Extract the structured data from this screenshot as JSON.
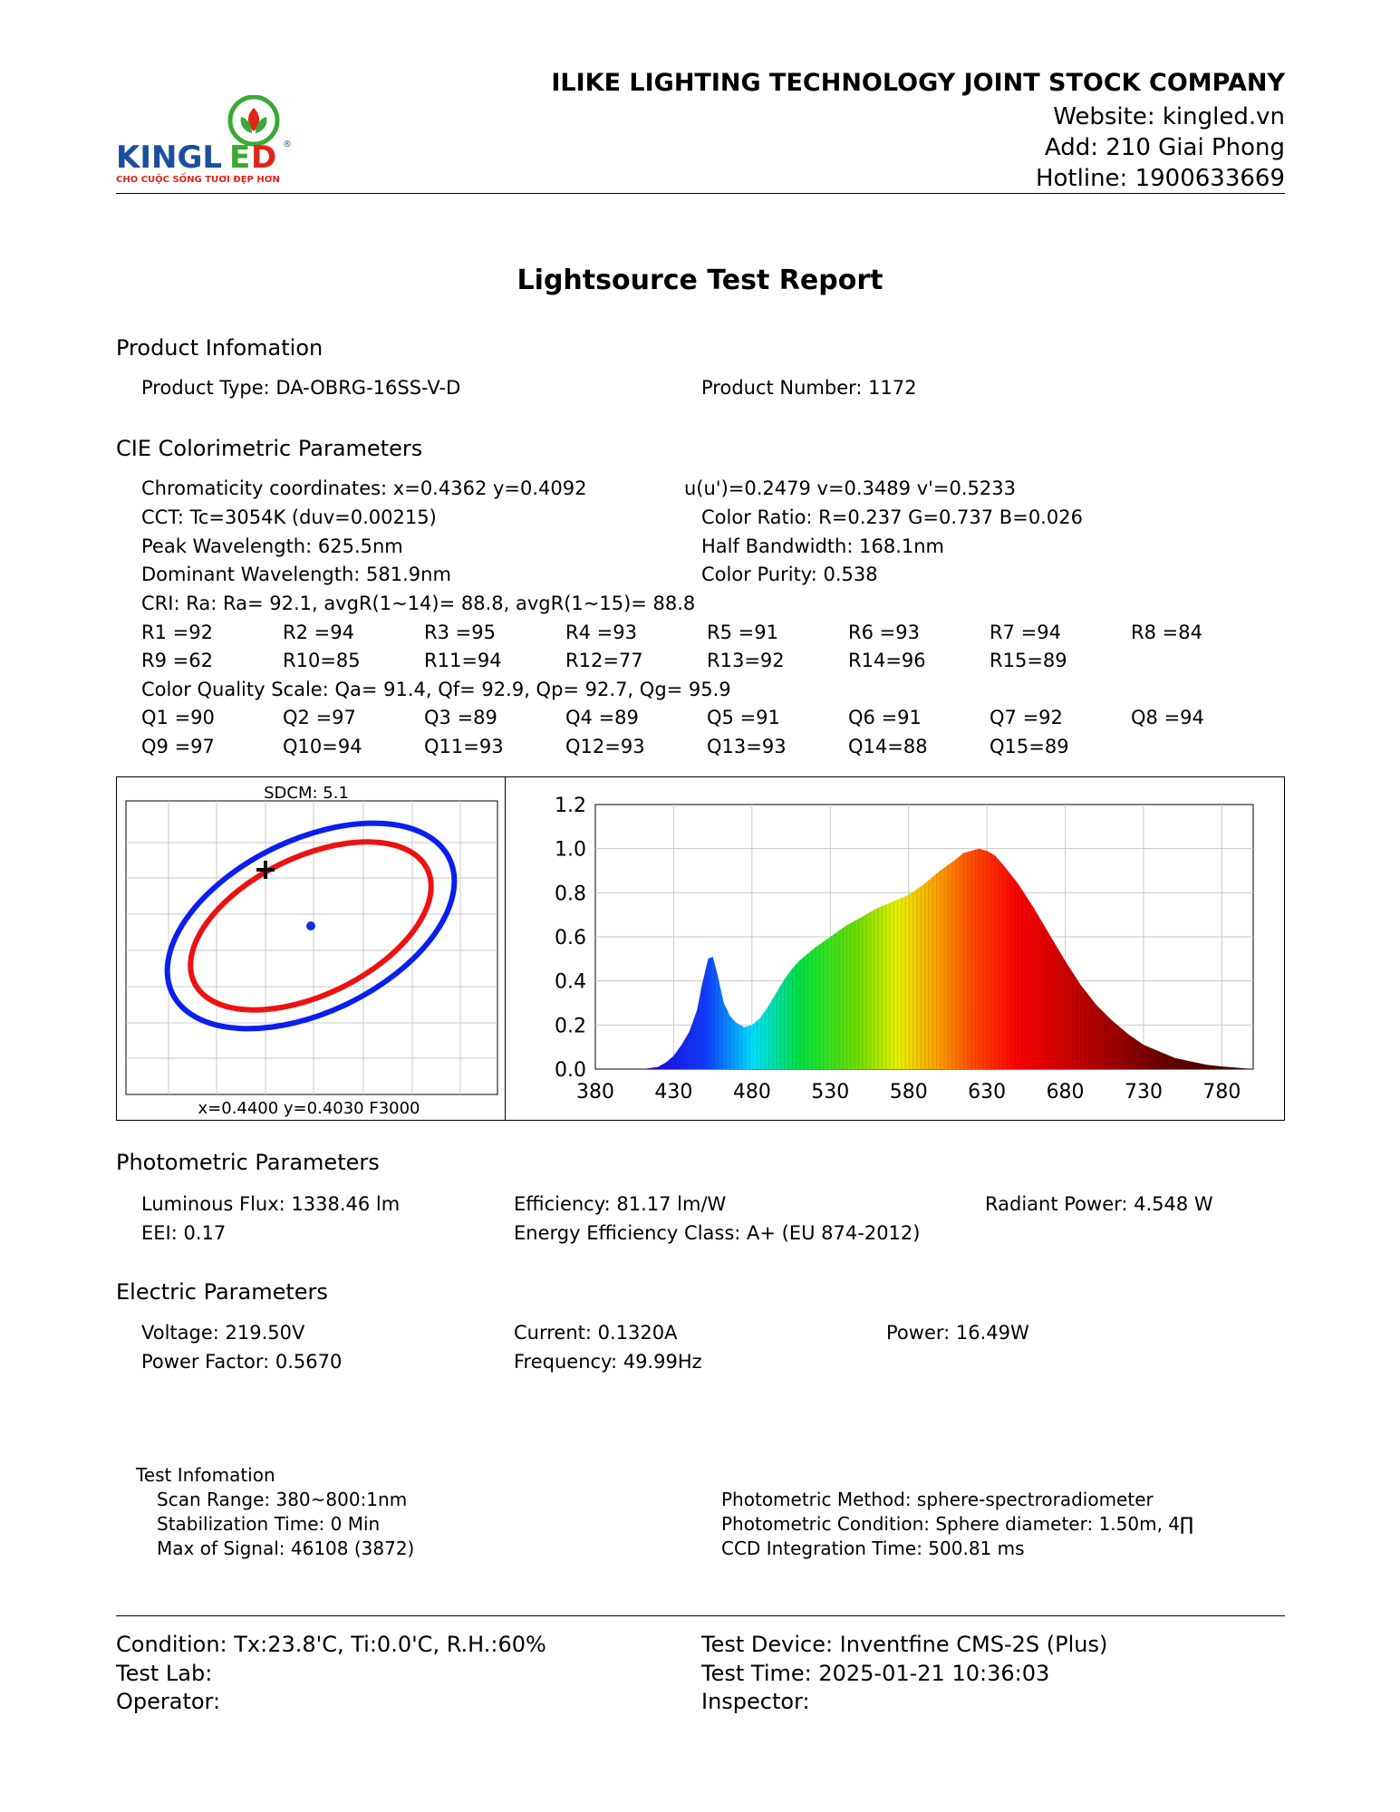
{
  "header": {
    "company": "ILIKE LIGHTING TECHNOLOGY JOINT STOCK COMPANY",
    "website": "Website: kingled.vn",
    "address": "Add: 210 Giai Phong",
    "hotline": "Hotline: 1900633669",
    "logo": {
      "wordmark_left": "KINGL",
      "wordmark_e": "E",
      "wordmark_right": "D",
      "tagline": "CHO CUỘC SỐNG TƯƠI ĐẸP HƠN",
      "registered": "®",
      "colors": {
        "blue": "#1a4f9c",
        "red": "#e2231a",
        "green": "#3aa935"
      }
    }
  },
  "title": "Lightsource Test Report",
  "product": {
    "heading": "Product Infomation",
    "type": "Product Type: DA-OBRG-16SS-V-D",
    "number": "Product Number: 1172"
  },
  "cie": {
    "heading": "CIE Colorimetric Parameters",
    "chromaticity": "Chromaticity coordinates: x=0.4362 y=0.4092",
    "uv": "u(u')=0.2479 v=0.3489 v'=0.5233",
    "cct": "CCT: Tc=3054K (duv=0.00215)",
    "color_ratio": "Color Ratio: R=0.237  G=0.737  B=0.026",
    "peak": "Peak Wavelength: 625.5nm",
    "half_bw": "Half Bandwidth: 168.1nm",
    "dominant": "Dominant Wavelength: 581.9nm",
    "purity": "Color Purity: 0.538",
    "cri": "CRI: Ra: Ra= 92.1, avgR(1~14)= 88.8, avgR(1~15)= 88.8",
    "r_row1": [
      "R1 =92",
      "R2 =94",
      "R3 =95",
      "R4 =93",
      "R5 =91",
      "R6 =93",
      "R7 =94",
      "R8 =84"
    ],
    "r_row2": [
      "R9 =62",
      "R10=85",
      "R11=94",
      "R12=77",
      "R13=92",
      "R14=96",
      "R15=89"
    ],
    "cqs": "Color Quality Scale: Qa= 91.4, Qf= 92.9, Qp= 92.7, Qg= 95.9",
    "q_row1": [
      "Q1 =90",
      "Q2 =97",
      "Q3 =89",
      "Q4 =89",
      "Q5 =91",
      "Q6 =91",
      "Q7 =92",
      "Q8 =94"
    ],
    "q_row2": [
      "Q9 =97",
      "Q10=94",
      "Q11=93",
      "Q12=93",
      "Q13=93",
      "Q14=88",
      "Q15=89"
    ]
  },
  "sdcm": {
    "label": "SDCM:   5.1",
    "footer": "x=0.4400 y=0.4030 F3000",
    "colors": {
      "outer": "#0a1ef0",
      "inner": "#ee1111",
      "center": "#1030e0",
      "marker": "#000000"
    }
  },
  "chart_data": {
    "type": "area",
    "xlabel": "",
    "ylabel": "",
    "xlim": [
      380,
      800
    ],
    "ylim": [
      0,
      1.2
    ],
    "x_ticks": [
      "380",
      "430",
      "480",
      "530",
      "580",
      "630",
      "680",
      "730",
      "780"
    ],
    "y_ticks": [
      "1.2",
      "1.0",
      "0.8",
      "0.6",
      "0.4",
      "0.2",
      "0.0"
    ],
    "grid": true,
    "series": [
      {
        "x": [
          410,
          420,
          425,
          430,
          435,
          440,
          445,
          448,
          452,
          455,
          458,
          462,
          466,
          470,
          475,
          480,
          485,
          490,
          495,
          500,
          505,
          510,
          520,
          530,
          540,
          550,
          560,
          570,
          580,
          590,
          600,
          610,
          615,
          620,
          625,
          630,
          635,
          640,
          650,
          660,
          670,
          680,
          690,
          700,
          710,
          720,
          730,
          740,
          750,
          760,
          770,
          780,
          790,
          800
        ],
        "y": [
          0.0,
          0.01,
          0.03,
          0.06,
          0.11,
          0.17,
          0.27,
          0.38,
          0.5,
          0.51,
          0.43,
          0.3,
          0.24,
          0.21,
          0.19,
          0.2,
          0.23,
          0.28,
          0.34,
          0.4,
          0.45,
          0.49,
          0.55,
          0.6,
          0.65,
          0.69,
          0.73,
          0.76,
          0.79,
          0.84,
          0.9,
          0.95,
          0.98,
          0.99,
          1.0,
          0.99,
          0.97,
          0.93,
          0.84,
          0.73,
          0.61,
          0.49,
          0.38,
          0.29,
          0.22,
          0.16,
          0.11,
          0.08,
          0.05,
          0.035,
          0.02,
          0.012,
          0.006,
          0.0
        ]
      }
    ]
  },
  "photometric": {
    "heading": "Photometric Parameters",
    "flux": "Luminous Flux: 1338.46 lm",
    "efficiency": "Efficiency: 81.17 lm/W",
    "radiant": "Radiant Power: 4.548 W",
    "eei": "EEI:  0.17",
    "eec": "Energy Efficiency Class: A+ (EU 874-2012)"
  },
  "electric": {
    "heading": "Electric Parameters",
    "voltage": "Voltage: 219.50V",
    "current": "Current: 0.1320A",
    "power": "Power: 16.49W",
    "pf": "Power Factor: 0.5670",
    "frequency": "Frequency: 49.99Hz"
  },
  "test": {
    "heading": "Test Infomation",
    "scan": "Scan Range: 380~800:1nm",
    "stabilization": "Stabilization Time: 0 Min",
    "signal": "Max of Signal: 46108 (3872)",
    "method": "Photometric Method: sphere-spectroradiometer",
    "condition": "Photometric Condition: Sphere diameter: 1.50m, 4∏",
    "ccd": "CCD Integration Time: 500.81 ms"
  },
  "footer": {
    "condition": "Condition: Tx:23.8'C, Ti:0.0'C, R.H.:60%",
    "lab": "Test Lab:",
    "operator": "Operator:",
    "device": "Test Device: Inventfine CMS-2S (Plus)",
    "time": "Test Time: 2025-01-21 10:36:03",
    "inspector": "Inspector:"
  }
}
